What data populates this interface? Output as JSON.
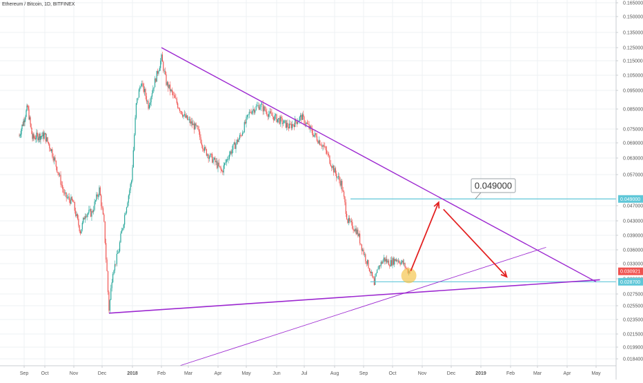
{
  "header": {
    "symbol_title": "Ethereum / Bitcoin, 1D, BITFINEX"
  },
  "colors": {
    "up": "#26a69a",
    "down": "#ef5350",
    "trendline": "#9c27d0",
    "level_line": "#5fc7d8",
    "arrow": "#e32020",
    "last_price_bg": "#ef5350",
    "level_label_bg": "#5fc7d8",
    "highlight_circle": "#f5c242"
  },
  "chart_data": {
    "type": "candlestick",
    "title": "Ethereum / Bitcoin, 1D, BITFINEX",
    "x_tick_labels": [
      "Sep",
      "Oct",
      "Nov",
      "Dec",
      "2018",
      "Feb",
      "Mar",
      "Apr",
      "May",
      "Jun",
      "Jul",
      "Aug",
      "Sep",
      "Oct",
      "Nov",
      "Dec",
      "2019",
      "Feb",
      "Mar",
      "Apr",
      "May"
    ],
    "y_scale": "log",
    "y_range": [
      0.0166,
      0.175
    ],
    "y_tick_labels": [
      "0.165000",
      "0.150000",
      "0.135000",
      "0.125000",
      "0.115000",
      "0.105000",
      "0.095000",
      "0.085000",
      "0.075000",
      "0.069000",
      "0.063000",
      "0.057000",
      "0.047000",
      "0.043000",
      "0.039000",
      "0.036000",
      "0.033000",
      "0.029000",
      "0.027500",
      "0.025500",
      "0.023500",
      "0.021500",
      "0.019900",
      "0.018400"
    ],
    "last_price": "0.030921",
    "price_path": [
      [
        "2017-08-25",
        0.072
      ],
      [
        "2017-09-01",
        0.08
      ],
      [
        "2017-09-06",
        0.086
      ],
      [
        "2017-09-13",
        0.071
      ],
      [
        "2017-09-22",
        0.072
      ],
      [
        "2017-10-01",
        0.072
      ],
      [
        "2017-10-08",
        0.066
      ],
      [
        "2017-10-16",
        0.057
      ],
      [
        "2017-10-22",
        0.05
      ],
      [
        "2017-10-31",
        0.048
      ],
      [
        "2017-11-08",
        0.04
      ],
      [
        "2017-11-13",
        0.045
      ],
      [
        "2017-11-20",
        0.045
      ],
      [
        "2017-11-28",
        0.052
      ],
      [
        "2017-12-03",
        0.042
      ],
      [
        "2017-12-08",
        0.025
      ],
      [
        "2017-12-12",
        0.031
      ],
      [
        "2017-12-18",
        0.036
      ],
      [
        "2017-12-25",
        0.046
      ],
      [
        "2017-12-31",
        0.055
      ],
      [
        "2018-01-05",
        0.087
      ],
      [
        "2018-01-10",
        0.1
      ],
      [
        "2018-01-14",
        0.094
      ],
      [
        "2018-01-18",
        0.087
      ],
      [
        "2018-02-01",
        0.117
      ],
      [
        "2018-02-06",
        0.1
      ],
      [
        "2018-02-15",
        0.09
      ],
      [
        "2018-02-25",
        0.081
      ],
      [
        "2018-03-10",
        0.075
      ],
      [
        "2018-03-18",
        0.066
      ],
      [
        "2018-03-30",
        0.061
      ],
      [
        "2018-04-05",
        0.058
      ],
      [
        "2018-04-12",
        0.064
      ],
      [
        "2018-04-25",
        0.072
      ],
      [
        "2018-05-05",
        0.084
      ],
      [
        "2018-05-15",
        0.087
      ],
      [
        "2018-05-25",
        0.082
      ],
      [
        "2018-06-05",
        0.079
      ],
      [
        "2018-06-15",
        0.076
      ],
      [
        "2018-06-28",
        0.081
      ],
      [
        "2018-07-10",
        0.073
      ],
      [
        "2018-07-20",
        0.068
      ],
      [
        "2018-07-25",
        0.064
      ],
      [
        "2018-08-01",
        0.058
      ],
      [
        "2018-08-08",
        0.054
      ],
      [
        "2018-08-15",
        0.043
      ],
      [
        "2018-08-25",
        0.04
      ],
      [
        "2018-09-05",
        0.033
      ],
      [
        "2018-09-12",
        0.028
      ],
      [
        "2018-09-16",
        0.032
      ],
      [
        "2018-09-22",
        0.034
      ],
      [
        "2018-09-28",
        0.033
      ],
      [
        "2018-10-05",
        0.034
      ],
      [
        "2018-10-12",
        0.033
      ],
      [
        "2018-10-17",
        0.031
      ],
      [
        "2018-10-19",
        0.0309
      ]
    ],
    "annotations": {
      "resistance_trendline": {
        "from": [
          "2018-02-01",
          0.125
        ],
        "to": [
          "2019-05-01",
          0.0287
        ]
      },
      "support_trendline": {
        "from": [
          "2017-12-08",
          0.0244
        ],
        "to": [
          "2019-05-05",
          0.0289
        ]
      },
      "rising_trendline": {
        "from": [
          "2018-02-20",
          0.0166
        ],
        "to": [
          "2019-03-10",
          0.0365
        ]
      },
      "level_049": {
        "value": 0.049,
        "start": "2018-08-18",
        "label": "0.049000"
      },
      "level_0287": {
        "value": 0.0287,
        "start": "2018-09-08",
        "label": "0.028700"
      },
      "projection_up": {
        "from": [
          "2018-10-20",
          0.031
        ],
        "to": [
          "2018-11-18",
          0.048
        ]
      },
      "projection_down": {
        "from": [
          "2018-11-23",
          0.046
        ],
        "to": [
          "2019-01-28",
          0.0295
        ]
      },
      "highlight": [
        "2018-10-18",
        0.0298
      ]
    }
  }
}
